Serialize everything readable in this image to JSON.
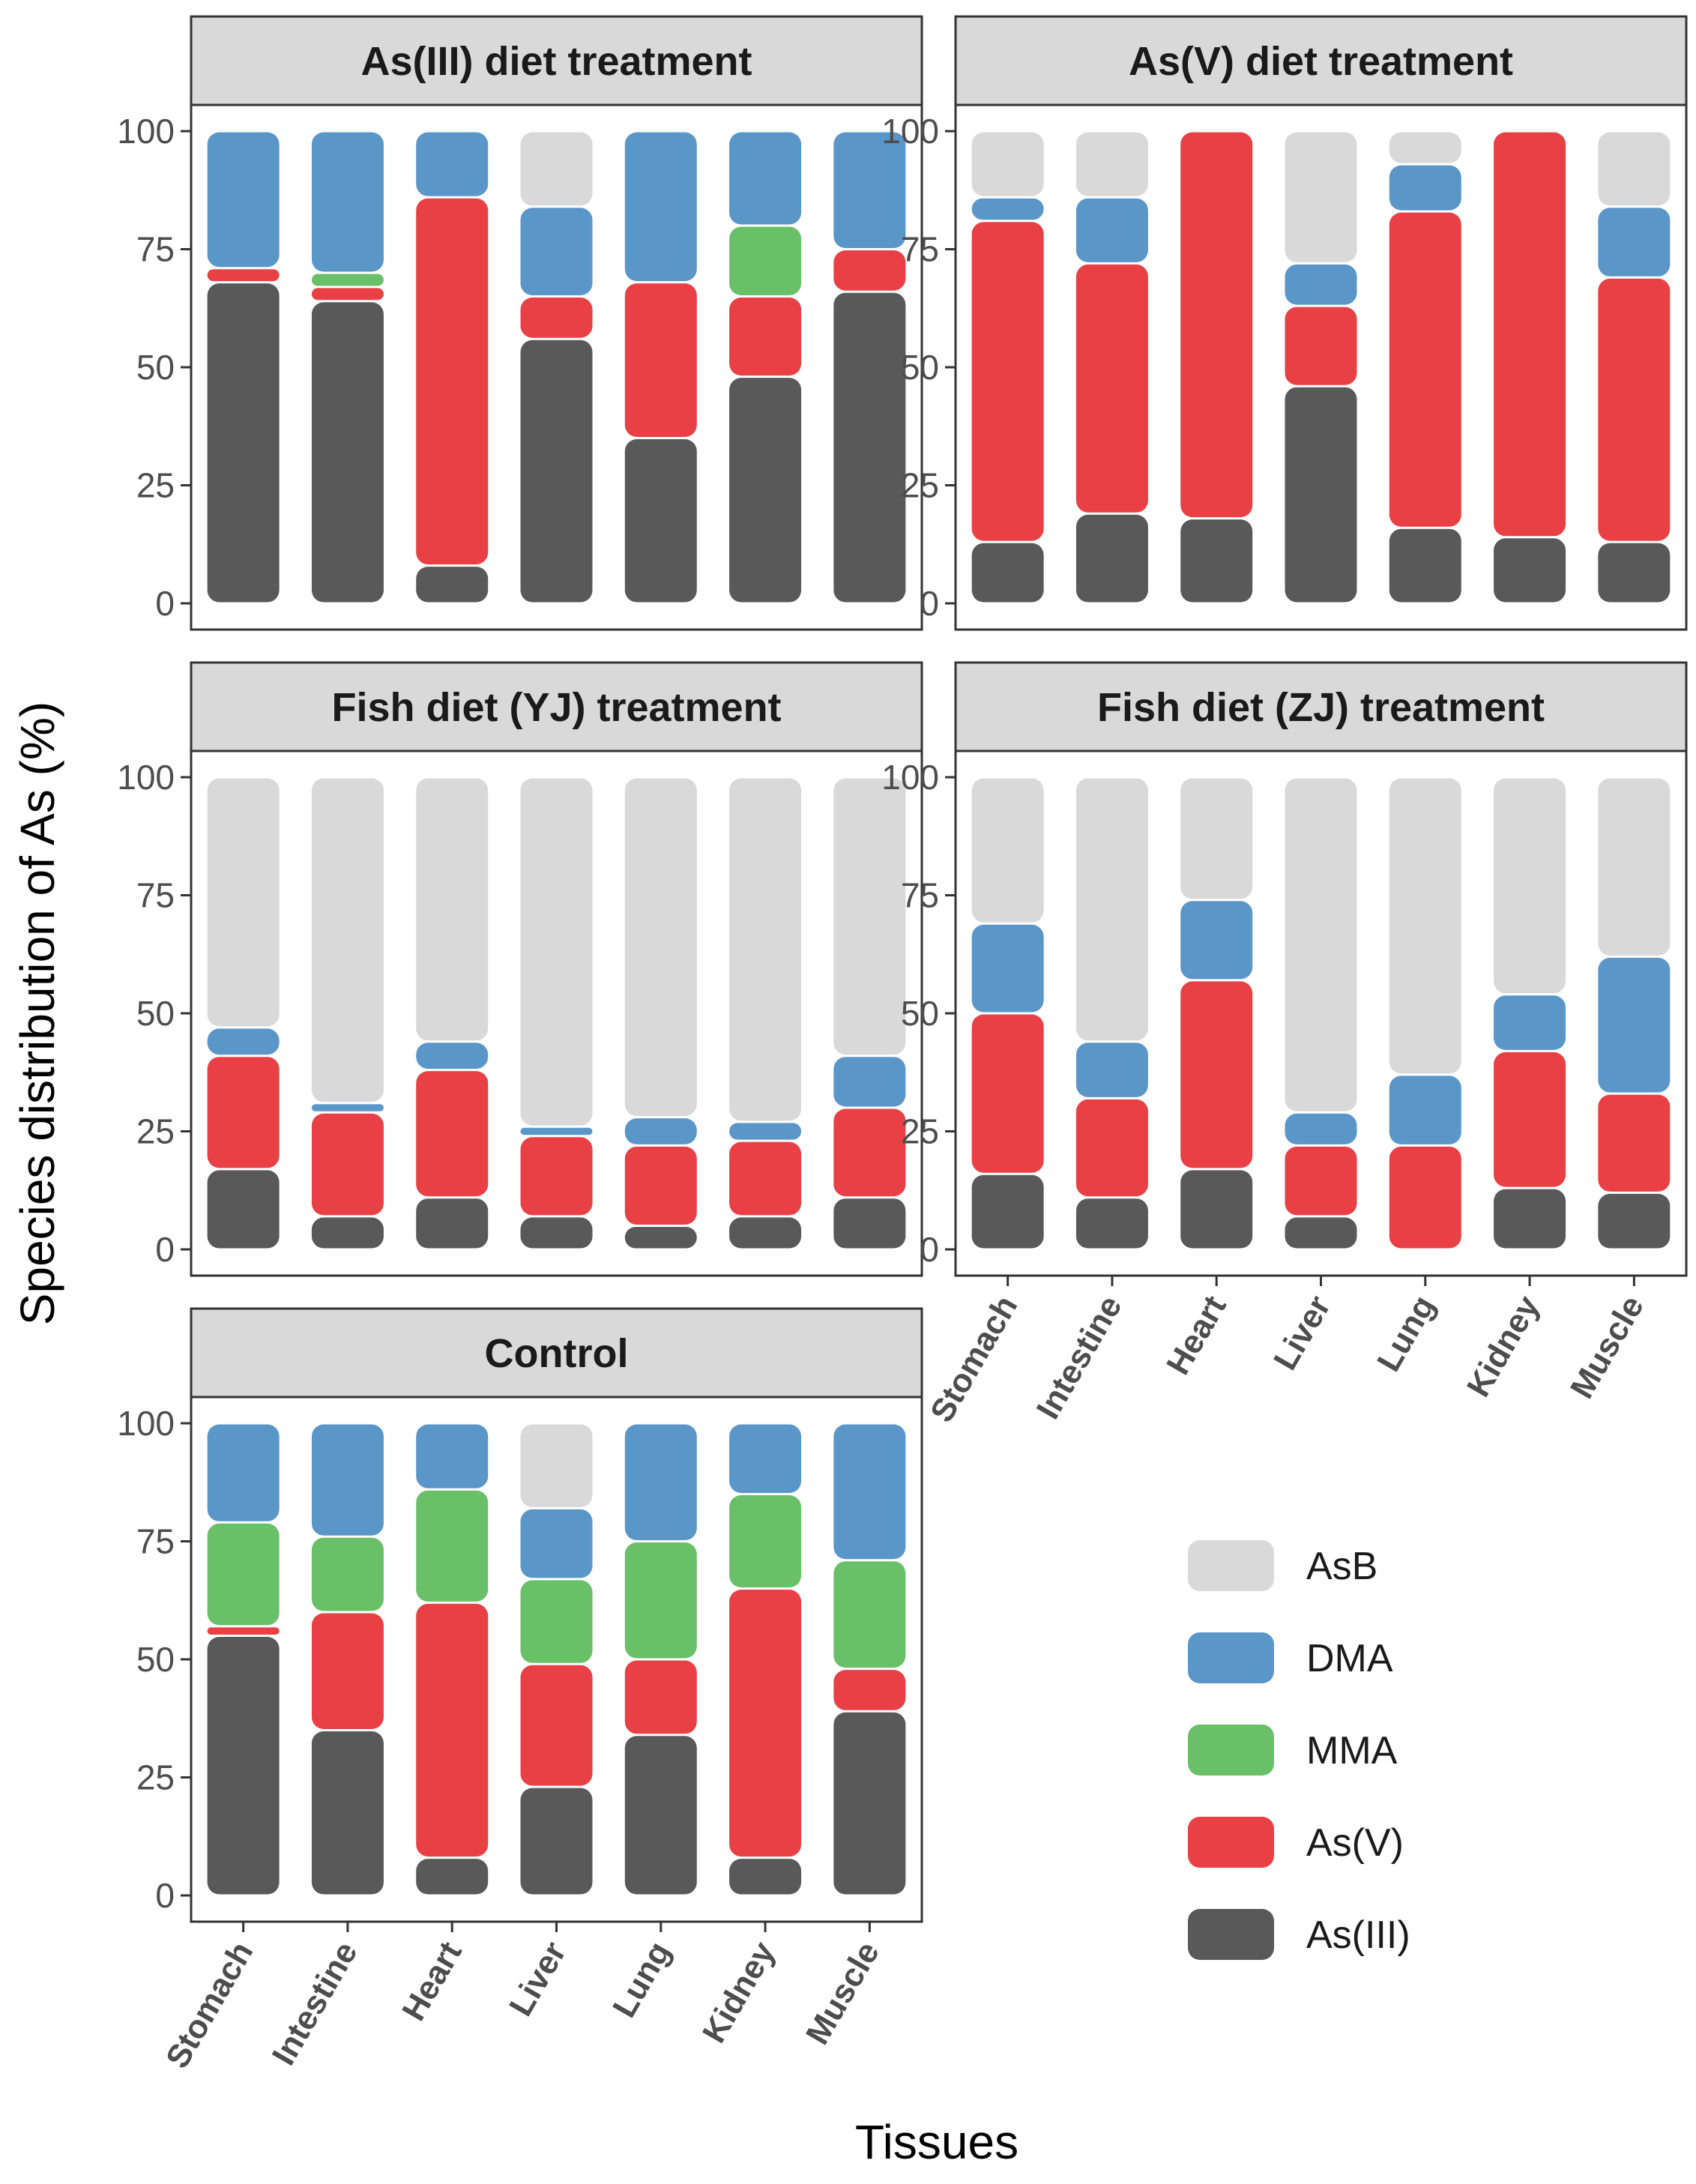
{
  "chart_data": {
    "type": "bar",
    "stacked": true,
    "title": "",
    "xlabel": "Tissues",
    "ylabel": "Species distribution of As (%)",
    "ylim": [
      0,
      100
    ],
    "yticks": [
      "0",
      "25",
      "50",
      "75",
      "100"
    ],
    "categories": [
      "Stomach",
      "Intestine",
      "Heart",
      "Liver",
      "Lung",
      "Kidney",
      "Muscle"
    ],
    "species": [
      "As(III)",
      "As(V)",
      "MMA",
      "DMA",
      "AsB"
    ],
    "legend": {
      "position": "right",
      "order": [
        "AsB",
        "DMA",
        "MMA",
        "As(V)",
        "As(III)"
      ]
    },
    "colors": {
      "As(III)": "#595959",
      "As(V)": "#e84045",
      "MMA": "#6abf69",
      "DMA": "#5b96c9",
      "AsB": "#d9d9d9"
    },
    "panels": [
      {
        "title": "As(III) diet treatment",
        "series": [
          {
            "name": "As(III)",
            "values": [
              68,
              64,
              8,
              56,
              35,
              48,
              66
            ]
          },
          {
            "name": "As(V)",
            "values": [
              3,
              3,
              78,
              9,
              33,
              17,
              9
            ]
          },
          {
            "name": "MMA",
            "values": [
              0,
              3,
              0,
              0,
              0,
              15,
              0
            ]
          },
          {
            "name": "DMA",
            "values": [
              29,
              30,
              14,
              19,
              32,
              20,
              25
            ]
          },
          {
            "name": "AsB",
            "values": [
              0,
              0,
              0,
              16,
              0,
              0,
              0
            ]
          }
        ]
      },
      {
        "title": "As(V) diet treatment",
        "series": [
          {
            "name": "As(III)",
            "values": [
              13,
              19,
              18,
              46,
              16,
              14,
              13
            ]
          },
          {
            "name": "As(V)",
            "values": [
              68,
              53,
              82,
              17,
              67,
              86,
              56
            ]
          },
          {
            "name": "MMA",
            "values": [
              0,
              0,
              0,
              0,
              0,
              0,
              0
            ]
          },
          {
            "name": "DMA",
            "values": [
              5,
              14,
              0,
              9,
              10,
              0,
              15
            ]
          },
          {
            "name": "AsB",
            "values": [
              14,
              14,
              0,
              28,
              7,
              0,
              16
            ]
          }
        ]
      },
      {
        "title": "Fish diet (YJ) treatment",
        "series": [
          {
            "name": "As(III)",
            "values": [
              17,
              7,
              11,
              7,
              5,
              7,
              11
            ]
          },
          {
            "name": "As(V)",
            "values": [
              24,
              22,
              27,
              17,
              17,
              16,
              19
            ]
          },
          {
            "name": "MMA",
            "values": [
              0,
              0,
              0,
              0,
              0,
              0,
              0
            ]
          },
          {
            "name": "DMA",
            "values": [
              6,
              2,
              6,
              2,
              6,
              4,
              11
            ]
          },
          {
            "name": "AsB",
            "values": [
              53,
              69,
              56,
              74,
              72,
              73,
              59
            ]
          }
        ]
      },
      {
        "title": "Fish diet (ZJ) treatment",
        "series": [
          {
            "name": "As(III)",
            "values": [
              16,
              11,
              17,
              7,
              0,
              13,
              12
            ]
          },
          {
            "name": "As(V)",
            "values": [
              34,
              21,
              40,
              15,
              22,
              29,
              21
            ]
          },
          {
            "name": "MMA",
            "values": [
              0,
              0,
              0,
              0,
              0,
              0,
              0
            ]
          },
          {
            "name": "DMA",
            "values": [
              19,
              12,
              17,
              7,
              15,
              12,
              29
            ]
          },
          {
            "name": "AsB",
            "values": [
              31,
              56,
              26,
              71,
              63,
              46,
              38
            ]
          }
        ]
      },
      {
        "title": "Control",
        "series": [
          {
            "name": "As(III)",
            "values": [
              55,
              35,
              8,
              23,
              34,
              8,
              39
            ]
          },
          {
            "name": "As(V)",
            "values": [
              2,
              25,
              54,
              26,
              16,
              57,
              9
            ]
          },
          {
            "name": "MMA",
            "values": [
              22,
              16,
              24,
              18,
              25,
              20,
              23
            ]
          },
          {
            "name": "DMA",
            "values": [
              21,
              24,
              14,
              15,
              25,
              15,
              29
            ]
          },
          {
            "name": "AsB",
            "values": [
              0,
              0,
              0,
              18,
              0,
              0,
              0
            ]
          }
        ]
      }
    ]
  }
}
